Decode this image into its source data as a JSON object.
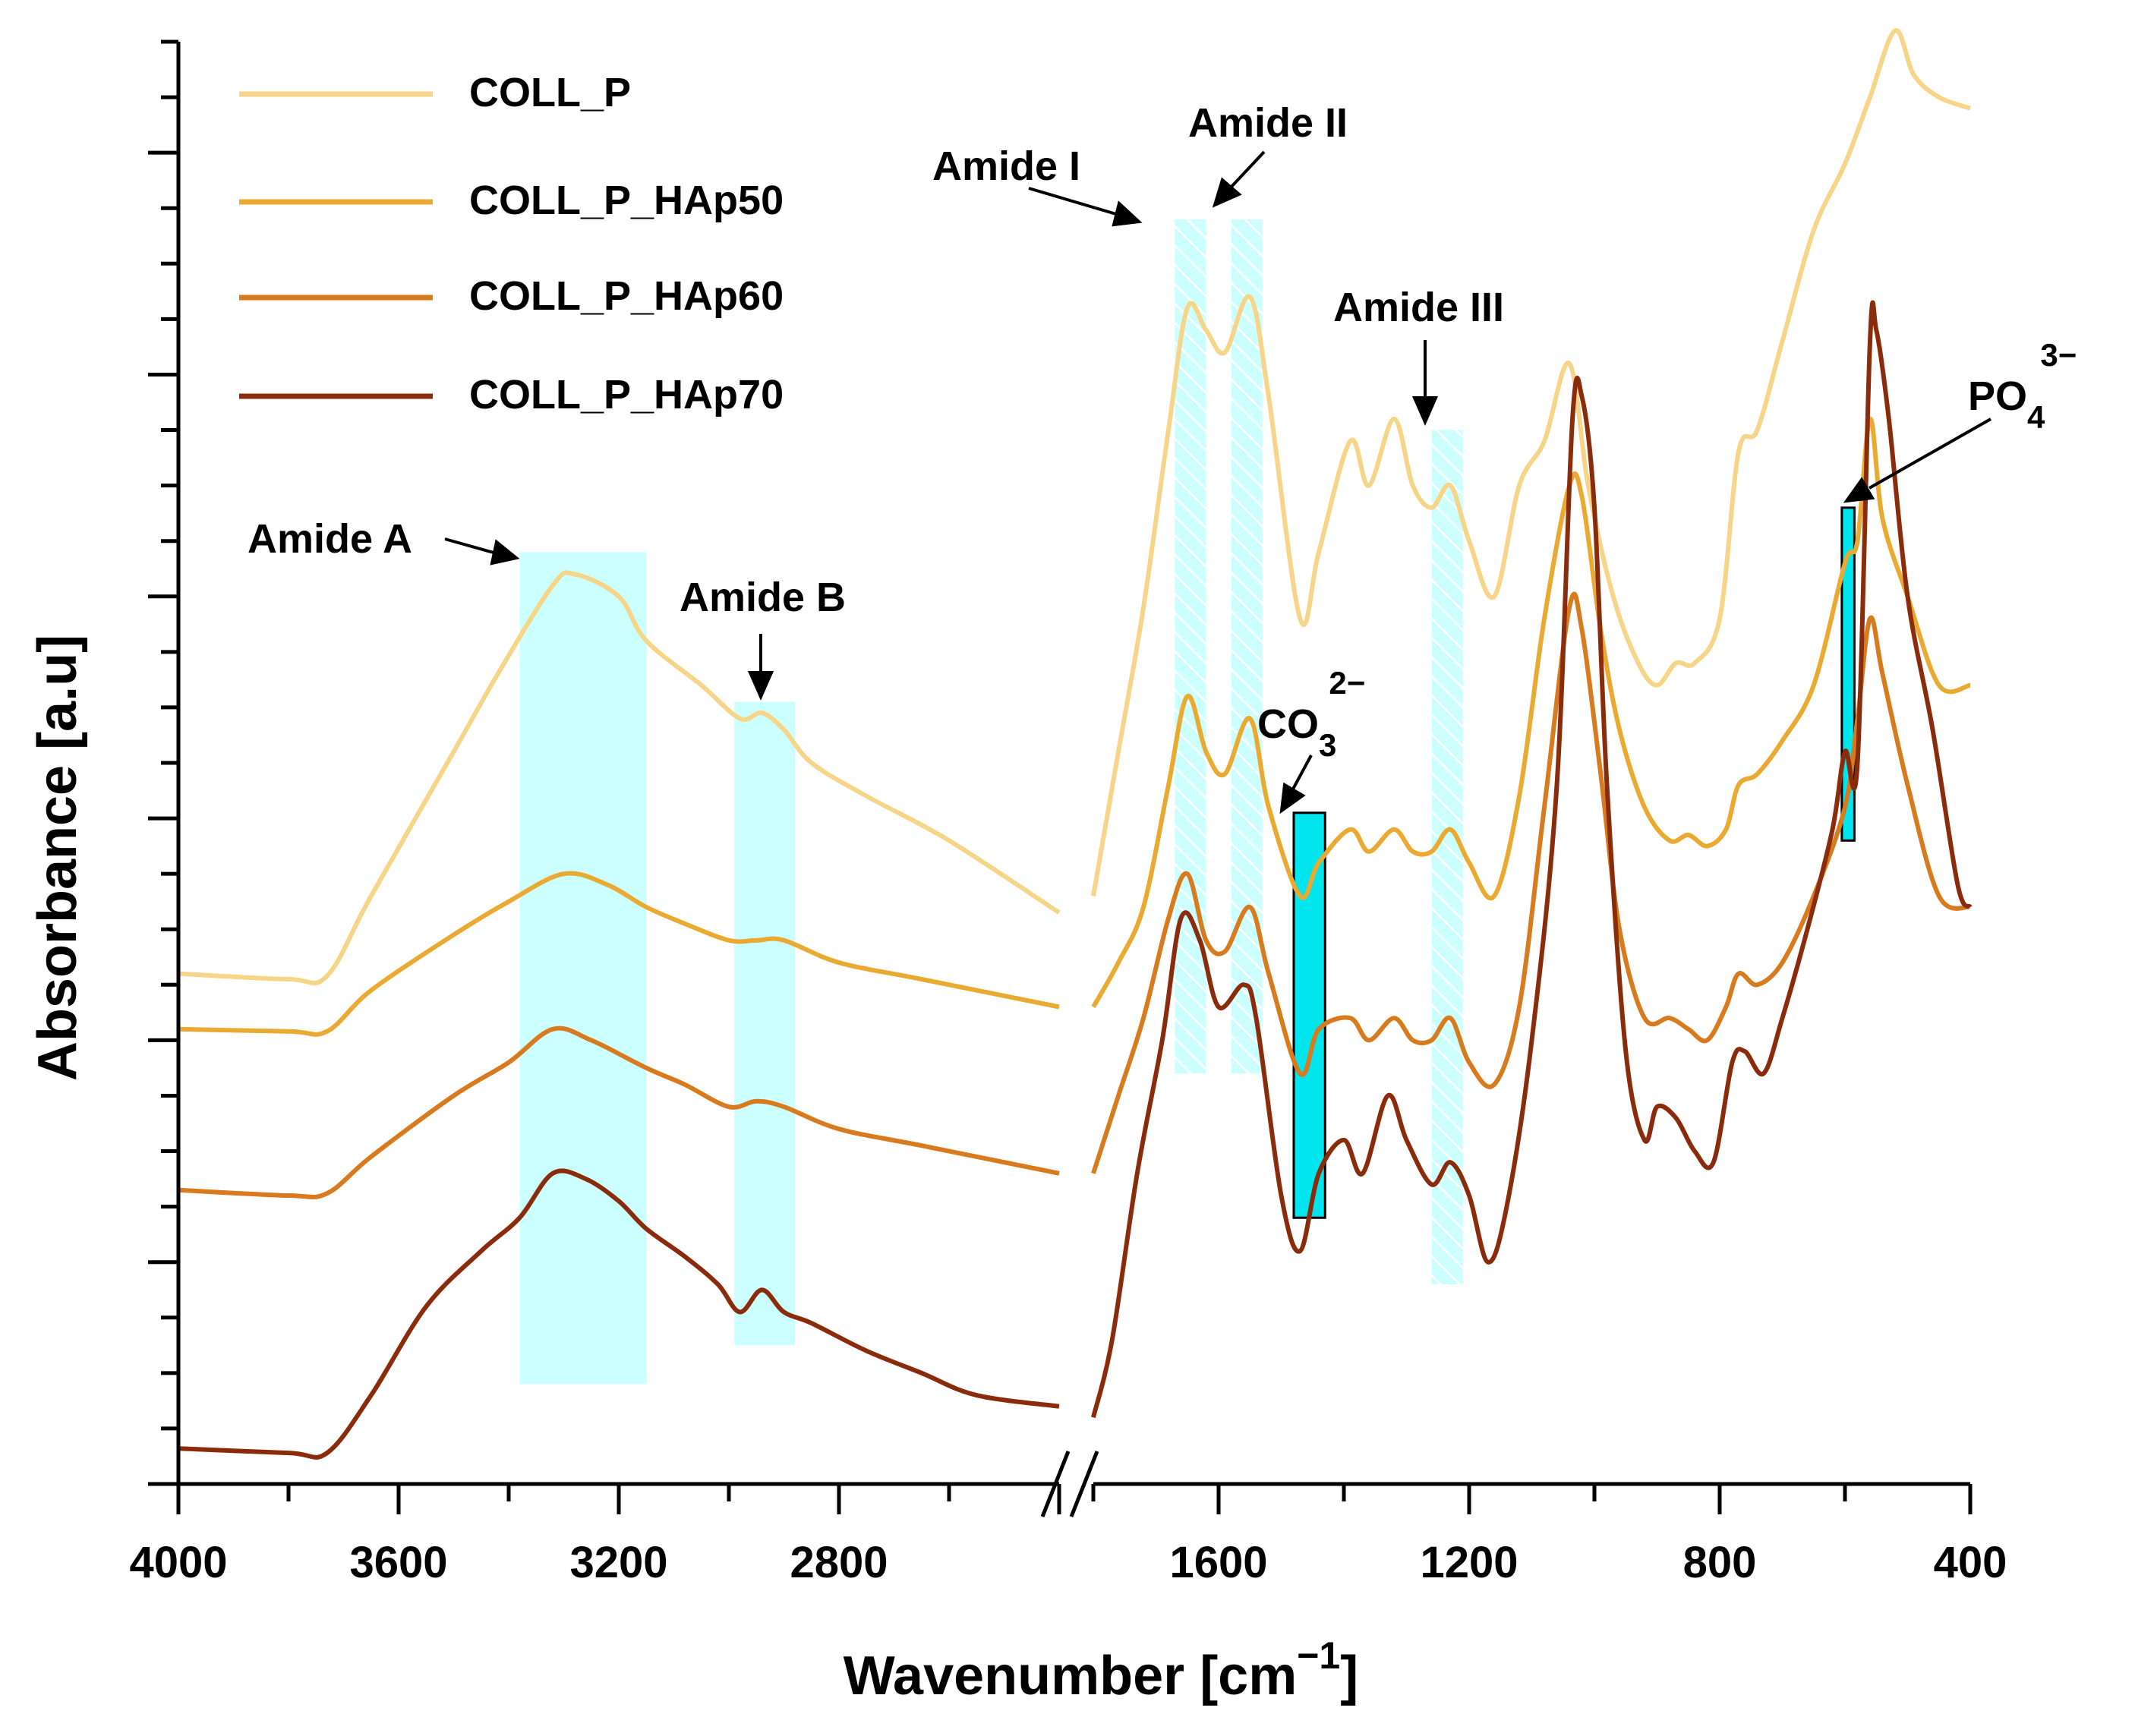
{
  "chart_data": {
    "type": "line",
    "title": "",
    "xlabel": "Wavenumber [cm",
    "xlabel_sup": "−1",
    "xlabel_close": "]",
    "ylabel": "Absorbance [a.u]",
    "x_ticks": [
      4000,
      3600,
      3200,
      2800,
      1600,
      1200,
      800,
      400
    ],
    "x_break": [
      2400,
      1800
    ],
    "xlim_left": [
      4000,
      2400
    ],
    "xlim_right": [
      1800,
      400
    ],
    "ylim": [
      0,
      13
    ],
    "legend_position": "top-left",
    "series": [
      {
        "name": "COLL_P",
        "color": "#f6d488",
        "left": [
          [
            4000,
            4.6
          ],
          [
            3800,
            4.55
          ],
          [
            3730,
            4.58
          ],
          [
            3650,
            5.3
          ],
          [
            3500,
            6.6
          ],
          [
            3420,
            7.3
          ],
          [
            3320,
            8.1
          ],
          [
            3280,
            8.2
          ],
          [
            3200,
            8.0
          ],
          [
            3150,
            7.6
          ],
          [
            3050,
            7.2
          ],
          [
            2980,
            6.9
          ],
          [
            2940,
            6.95
          ],
          [
            2900,
            6.8
          ],
          [
            2850,
            6.5
          ],
          [
            2750,
            6.2
          ],
          [
            2600,
            5.8
          ],
          [
            2400,
            5.15
          ]
        ],
        "right": [
          [
            1800,
            5.3
          ],
          [
            1760,
            6.6
          ],
          [
            1720,
            7.9
          ],
          [
            1680,
            9.5
          ],
          [
            1650,
            10.6
          ],
          [
            1620,
            10.4
          ],
          [
            1590,
            10.2
          ],
          [
            1550,
            10.7
          ],
          [
            1520,
            9.8
          ],
          [
            1470,
            7.8
          ],
          [
            1440,
            8.4
          ],
          [
            1390,
            9.4
          ],
          [
            1360,
            9.0
          ],
          [
            1320,
            9.6
          ],
          [
            1290,
            9.0
          ],
          [
            1260,
            8.8
          ],
          [
            1230,
            9.0
          ],
          [
            1200,
            8.5
          ],
          [
            1160,
            8.0
          ],
          [
            1120,
            9.0
          ],
          [
            1080,
            9.4
          ],
          [
            1040,
            10.1
          ],
          [
            1010,
            9.0
          ],
          [
            970,
            8.0
          ],
          [
            930,
            7.4
          ],
          [
            900,
            7.2
          ],
          [
            870,
            7.4
          ],
          [
            840,
            7.4
          ],
          [
            800,
            7.8
          ],
          [
            770,
            9.3
          ],
          [
            740,
            9.5
          ],
          [
            700,
            10.3
          ],
          [
            650,
            11.3
          ],
          [
            600,
            11.9
          ],
          [
            560,
            12.5
          ],
          [
            520,
            13.1
          ],
          [
            490,
            12.7
          ],
          [
            450,
            12.5
          ],
          [
            400,
            12.4
          ]
        ]
      },
      {
        "name": "COLL_P_HAp50",
        "color": "#eaaa32",
        "left": [
          [
            4000,
            4.1
          ],
          [
            3800,
            4.08
          ],
          [
            3730,
            4.08
          ],
          [
            3650,
            4.45
          ],
          [
            3500,
            4.95
          ],
          [
            3400,
            5.25
          ],
          [
            3300,
            5.5
          ],
          [
            3220,
            5.4
          ],
          [
            3150,
            5.2
          ],
          [
            3080,
            5.05
          ],
          [
            3000,
            4.9
          ],
          [
            2950,
            4.9
          ],
          [
            2900,
            4.9
          ],
          [
            2800,
            4.7
          ],
          [
            2650,
            4.55
          ],
          [
            2400,
            4.3
          ]
        ],
        "right": [
          [
            1800,
            4.3
          ],
          [
            1760,
            4.7
          ],
          [
            1720,
            5.2
          ],
          [
            1680,
            6.3
          ],
          [
            1650,
            7.1
          ],
          [
            1620,
            6.6
          ],
          [
            1590,
            6.4
          ],
          [
            1550,
            6.9
          ],
          [
            1520,
            6.1
          ],
          [
            1470,
            5.3
          ],
          [
            1440,
            5.6
          ],
          [
            1390,
            5.9
          ],
          [
            1360,
            5.7
          ],
          [
            1320,
            5.9
          ],
          [
            1290,
            5.7
          ],
          [
            1260,
            5.7
          ],
          [
            1230,
            5.9
          ],
          [
            1200,
            5.6
          ],
          [
            1160,
            5.3
          ],
          [
            1120,
            6.2
          ],
          [
            1080,
            7.8
          ],
          [
            1040,
            9.0
          ],
          [
            1020,
            8.9
          ],
          [
            990,
            7.7
          ],
          [
            960,
            6.8
          ],
          [
            920,
            6.1
          ],
          [
            880,
            5.8
          ],
          [
            850,
            5.85
          ],
          [
            820,
            5.75
          ],
          [
            790,
            5.9
          ],
          [
            770,
            6.3
          ],
          [
            740,
            6.4
          ],
          [
            700,
            6.7
          ],
          [
            650,
            7.2
          ],
          [
            600,
            8.3
          ],
          [
            580,
            8.5
          ],
          [
            560,
            9.6
          ],
          [
            540,
            8.7
          ],
          [
            500,
            8.0
          ],
          [
            450,
            7.2
          ],
          [
            400,
            7.2
          ]
        ]
      },
      {
        "name": "COLL_P_HAp60",
        "color": "#d87a1e",
        "left": [
          [
            4000,
            2.65
          ],
          [
            3800,
            2.6
          ],
          [
            3730,
            2.62
          ],
          [
            3650,
            2.95
          ],
          [
            3500,
            3.5
          ],
          [
            3400,
            3.8
          ],
          [
            3320,
            4.1
          ],
          [
            3250,
            4.0
          ],
          [
            3150,
            3.75
          ],
          [
            3080,
            3.6
          ],
          [
            3000,
            3.4
          ],
          [
            2950,
            3.45
          ],
          [
            2900,
            3.4
          ],
          [
            2800,
            3.2
          ],
          [
            2650,
            3.05
          ],
          [
            2400,
            2.8
          ]
        ],
        "right": [
          [
            1800,
            2.8
          ],
          [
            1760,
            3.5
          ],
          [
            1720,
            4.2
          ],
          [
            1680,
            5.1
          ],
          [
            1650,
            5.5
          ],
          [
            1620,
            4.9
          ],
          [
            1590,
            4.8
          ],
          [
            1550,
            5.2
          ],
          [
            1520,
            4.6
          ],
          [
            1470,
            3.7
          ],
          [
            1440,
            4.1
          ],
          [
            1390,
            4.2
          ],
          [
            1360,
            4.0
          ],
          [
            1320,
            4.2
          ],
          [
            1290,
            4.0
          ],
          [
            1260,
            4.0
          ],
          [
            1230,
            4.2
          ],
          [
            1200,
            3.8
          ],
          [
            1160,
            3.6
          ],
          [
            1120,
            4.3
          ],
          [
            1080,
            6.1
          ],
          [
            1040,
            7.9
          ],
          [
            1020,
            7.7
          ],
          [
            990,
            6.4
          ],
          [
            960,
            5.0
          ],
          [
            920,
            4.2
          ],
          [
            880,
            4.2
          ],
          [
            850,
            4.1
          ],
          [
            820,
            4.0
          ],
          [
            790,
            4.3
          ],
          [
            770,
            4.6
          ],
          [
            740,
            4.5
          ],
          [
            700,
            4.7
          ],
          [
            650,
            5.3
          ],
          [
            600,
            6.1
          ],
          [
            580,
            6.9
          ],
          [
            560,
            7.8
          ],
          [
            540,
            7.3
          ],
          [
            500,
            6.3
          ],
          [
            450,
            5.3
          ],
          [
            400,
            5.2
          ]
        ]
      },
      {
        "name": "COLL_P_HAp70",
        "color": "#8a2b0c",
        "left": [
          [
            4000,
            0.32
          ],
          [
            3800,
            0.28
          ],
          [
            3730,
            0.28
          ],
          [
            3650,
            0.8
          ],
          [
            3550,
            1.6
          ],
          [
            3450,
            2.1
          ],
          [
            3380,
            2.4
          ],
          [
            3320,
            2.8
          ],
          [
            3260,
            2.75
          ],
          [
            3200,
            2.55
          ],
          [
            3150,
            2.3
          ],
          [
            3080,
            2.05
          ],
          [
            3020,
            1.8
          ],
          [
            2980,
            1.55
          ],
          [
            2940,
            1.75
          ],
          [
            2900,
            1.55
          ],
          [
            2850,
            1.45
          ],
          [
            2750,
            1.2
          ],
          [
            2650,
            1.0
          ],
          [
            2550,
            0.8
          ],
          [
            2400,
            0.7
          ]
        ],
        "right": [
          [
            1800,
            0.6
          ],
          [
            1770,
            1.3
          ],
          [
            1730,
            2.8
          ],
          [
            1690,
            4.0
          ],
          [
            1660,
            5.1
          ],
          [
            1630,
            4.9
          ],
          [
            1600,
            4.3
          ],
          [
            1560,
            4.5
          ],
          [
            1540,
            4.2
          ],
          [
            1500,
            2.6
          ],
          [
            1470,
            2.1
          ],
          [
            1440,
            2.8
          ],
          [
            1400,
            3.1
          ],
          [
            1370,
            2.8
          ],
          [
            1330,
            3.5
          ],
          [
            1300,
            3.1
          ],
          [
            1260,
            2.7
          ],
          [
            1230,
            2.9
          ],
          [
            1200,
            2.6
          ],
          [
            1170,
            2.0
          ],
          [
            1140,
            2.5
          ],
          [
            1100,
            4.0
          ],
          [
            1060,
            6.3
          ],
          [
            1035,
            9.6
          ],
          [
            1020,
            9.8
          ],
          [
            1000,
            8.8
          ],
          [
            980,
            6.3
          ],
          [
            950,
            3.9
          ],
          [
            920,
            3.1
          ],
          [
            900,
            3.4
          ],
          [
            870,
            3.3
          ],
          [
            840,
            3.0
          ],
          [
            810,
            2.9
          ],
          [
            780,
            3.8
          ],
          [
            760,
            3.9
          ],
          [
            730,
            3.7
          ],
          [
            700,
            4.2
          ],
          [
            660,
            5.0
          ],
          [
            620,
            5.9
          ],
          [
            600,
            6.6
          ],
          [
            580,
            6.5
          ],
          [
            560,
            10.3
          ],
          [
            550,
            10.4
          ],
          [
            530,
            9.6
          ],
          [
            500,
            8.0
          ],
          [
            460,
            6.8
          ],
          [
            420,
            5.4
          ],
          [
            400,
            5.2
          ]
        ]
      }
    ],
    "bands": [
      {
        "label": "Amide A",
        "x_from": 3380,
        "x_to": 3150,
        "y_from": 0.9,
        "y_to": 8.4,
        "style": "solid"
      },
      {
        "label": "Amide B",
        "x_from": 2990,
        "x_to": 2880,
        "y_from": 1.25,
        "y_to": 7.05,
        "style": "solid"
      },
      {
        "label": "Amide I",
        "x_from": 1670,
        "x_to": 1620,
        "y_from": 3.7,
        "y_to": 11.4,
        "style": "hatched"
      },
      {
        "label": "Amide II",
        "x_from": 1580,
        "x_to": 1530,
        "y_from": 3.7,
        "y_to": 11.4,
        "style": "hatched"
      },
      {
        "label": "Amide III",
        "x_from": 1260,
        "x_to": 1210,
        "y_from": 1.8,
        "y_to": 9.5,
        "style": "hatched"
      },
      {
        "label": "CO3",
        "x_from": 1480,
        "x_to": 1430,
        "y_from": 2.4,
        "y_to": 6.05,
        "style": "strong"
      },
      {
        "label": "PO4",
        "x_from": 605,
        "x_to": 585,
        "y_from": 5.8,
        "y_to": 8.8,
        "style": "strong"
      }
    ],
    "annotations": [
      {
        "id": "amide-a",
        "text": "Amide A"
      },
      {
        "id": "amide-b",
        "text": "Amide B"
      },
      {
        "id": "amide-i",
        "text": "Amide I"
      },
      {
        "id": "amide-ii",
        "text": "Amide II"
      },
      {
        "id": "amide-iii",
        "text": "Amide III"
      }
    ],
    "ions": {
      "carbonate": {
        "base": "CO",
        "sub": "3",
        "sup": "2−"
      },
      "phosphate": {
        "base": "PO",
        "sub": "4",
        "sup": "3−"
      }
    },
    "colors": {
      "band_fill": "#ccffff",
      "band_strong": "#00e5ee",
      "hatch_line": "#ffffff",
      "axis": "#000000"
    }
  }
}
